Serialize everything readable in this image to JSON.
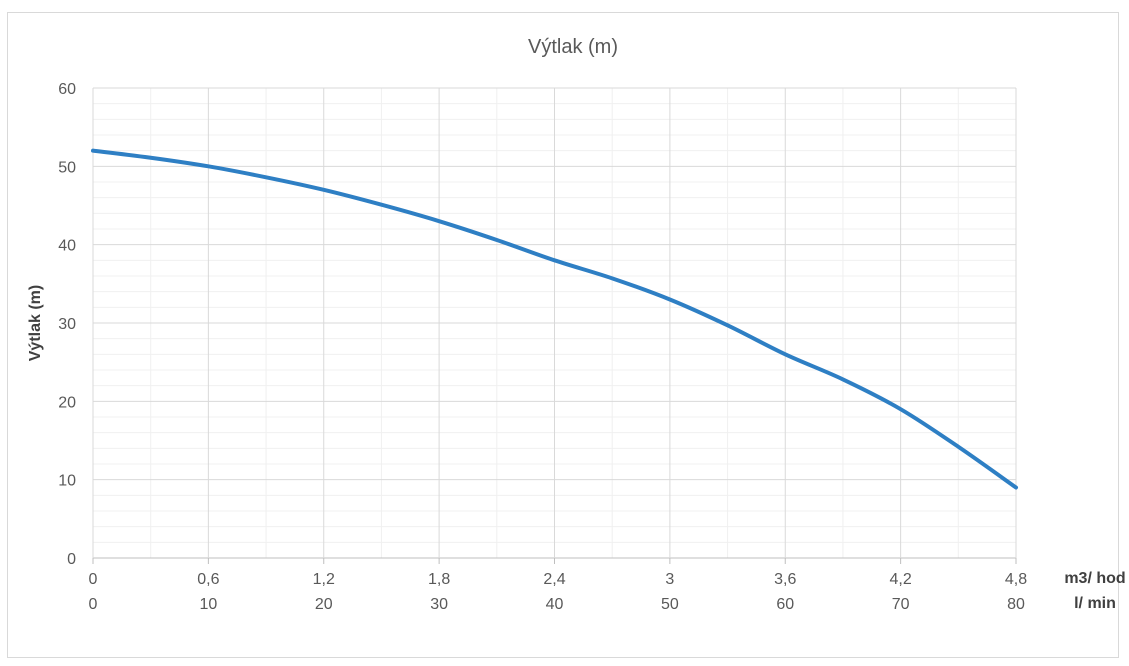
{
  "chart_data": {
    "type": "line",
    "title": "Výtlak (m)",
    "ylabel": "Výtlak (m)",
    "ylim": [
      0,
      60
    ],
    "yticks": [
      0,
      10,
      20,
      30,
      40,
      50,
      60
    ],
    "xlim": [
      0,
      4.8
    ],
    "xticks_primary": [
      "0",
      "0,6",
      "1,2",
      "1,8",
      "2,4",
      "3",
      "3,6",
      "4,2",
      "4,8"
    ],
    "xticks_secondary": [
      "0",
      "10",
      "20",
      "30",
      "40",
      "50",
      "60",
      "70",
      "80"
    ],
    "x_unit_primary": "m3/ hod",
    "x_unit_secondary": "l/ min",
    "grid": true,
    "legend": "none",
    "series": [
      {
        "color": "#2e7fc4",
        "x": [
          0,
          0.3,
          0.6,
          0.9,
          1.2,
          1.5,
          1.8,
          2.1,
          2.4,
          2.7,
          3.0,
          3.3,
          3.6,
          3.9,
          4.2,
          4.5,
          4.8
        ],
        "y": [
          52,
          51.1,
          50,
          48.6,
          47,
          45.1,
          43,
          40.6,
          38,
          35.7,
          33,
          29.7,
          26,
          22.8,
          19,
          14.2,
          9
        ]
      }
    ]
  }
}
